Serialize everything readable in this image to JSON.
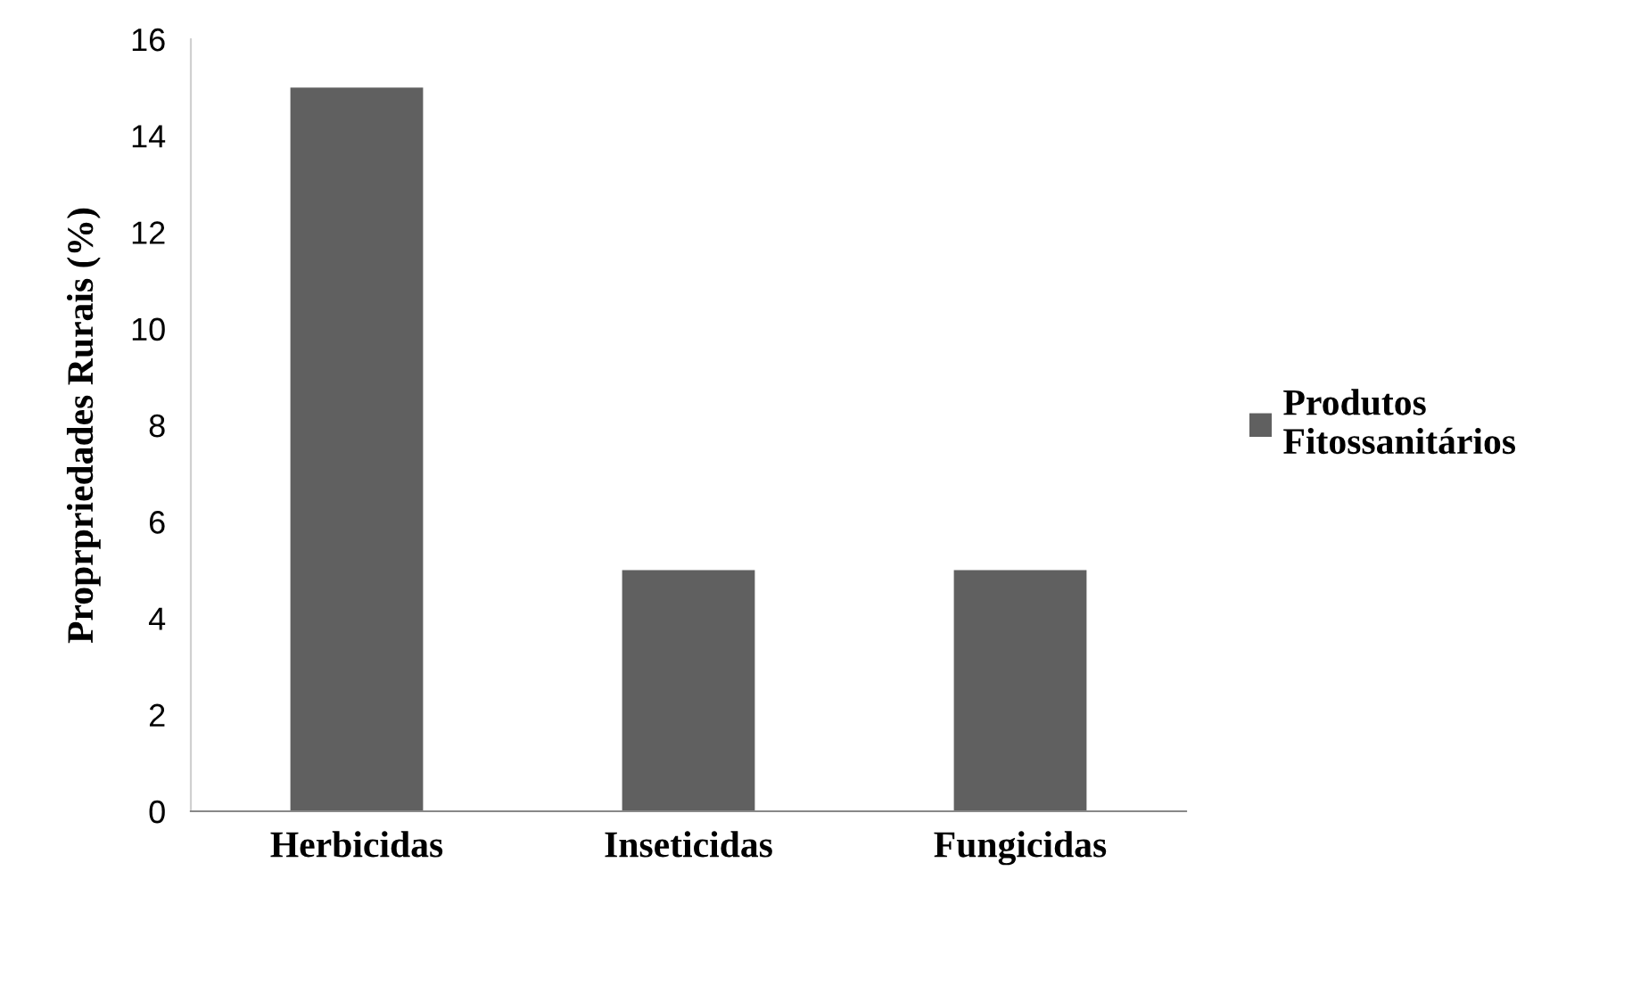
{
  "chart_data": {
    "type": "bar",
    "ylabel": "Proprpriedades Rurais (%)",
    "categories": [
      "Herbicidas",
      "Inseticidas",
      "Fungicidas"
    ],
    "series": [
      {
        "name": "Produtos\nFitossanitários",
        "color": "#606060",
        "values": [
          15,
          5,
          5
        ]
      }
    ],
    "ylim": [
      0,
      16
    ],
    "yticks": [
      0,
      2,
      4,
      6,
      8,
      10,
      12,
      14,
      16
    ],
    "grid": false,
    "legend": "right"
  }
}
